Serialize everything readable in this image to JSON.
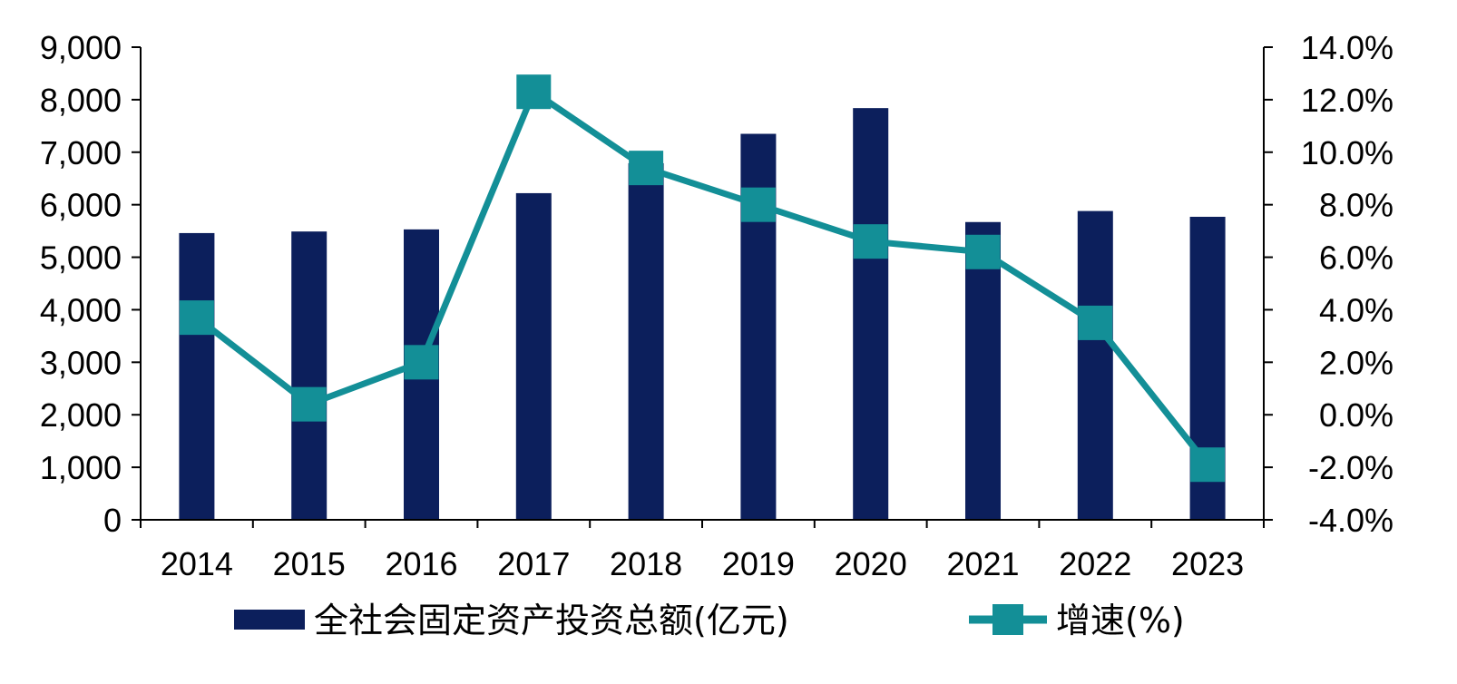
{
  "chart_data": {
    "type": "bar",
    "categories": [
      "2014",
      "2015",
      "2016",
      "2017",
      "2018",
      "2019",
      "2020",
      "2021",
      "2022",
      "2023"
    ],
    "series": [
      {
        "name": "全社会固定资产投资总额(亿元)",
        "type": "bar",
        "axis": "left",
        "color": "#0c1f5c",
        "values": [
          5460,
          5490,
          5530,
          6220,
          6790,
          7350,
          7840,
          5670,
          5880,
          5770
        ]
      },
      {
        "name": "增速(%)",
        "type": "line",
        "axis": "right",
        "color": "#138f97",
        "marker": "square",
        "values": [
          3.7,
          0.4,
          2.0,
          12.3,
          9.4,
          8.0,
          6.6,
          6.2,
          3.5,
          -1.9
        ]
      }
    ],
    "y_left": {
      "min": 0,
      "max": 9000,
      "step": 1000,
      "tick_labels": [
        "0",
        "1,000",
        "2,000",
        "3,000",
        "4,000",
        "5,000",
        "6,000",
        "7,000",
        "8,000",
        "9,000"
      ]
    },
    "y_right": {
      "min": -4,
      "max": 14,
      "step": 2,
      "tick_labels": [
        "-4.0%",
        "-2.0%",
        "0.0%",
        "2.0%",
        "4.0%",
        "6.0%",
        "8.0%",
        "10.0%",
        "12.0%",
        "14.0%"
      ]
    },
    "legend": {
      "position": "bottom",
      "bar_label": "全社会固定资产投资总额(亿元)",
      "line_label": "增速(%)"
    },
    "grid": false
  }
}
